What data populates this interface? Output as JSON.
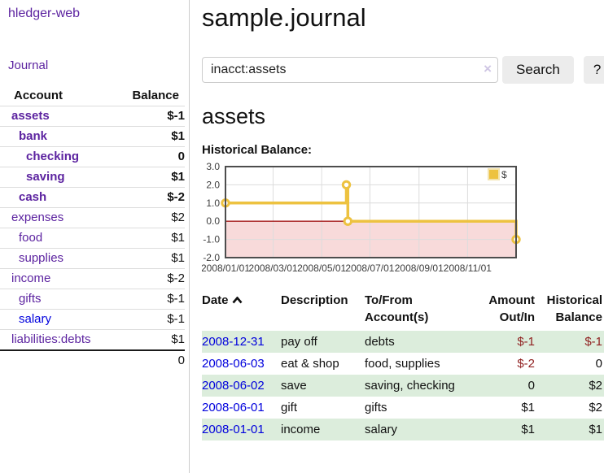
{
  "brand": "hledger-web",
  "nav": {
    "journal_label": "Journal"
  },
  "sidebar": {
    "header": {
      "account": "Account",
      "balance": "Balance"
    },
    "accounts": [
      {
        "name": "assets",
        "depth": 0,
        "balance": "$-1",
        "bold": true,
        "balance_style": "neg"
      },
      {
        "name": "bank",
        "depth": 1,
        "balance": "$1",
        "bold": true,
        "balance_style": "normal"
      },
      {
        "name": "checking",
        "depth": 2,
        "balance": "0",
        "bold": true,
        "balance_style": "normal"
      },
      {
        "name": "saving",
        "depth": 2,
        "balance": "$1",
        "bold": true,
        "balance_style": "normal"
      },
      {
        "name": "cash",
        "depth": 1,
        "balance": "$-2",
        "bold": true,
        "balance_style": "neg"
      },
      {
        "name": "expenses",
        "depth": 0,
        "balance": "$2",
        "bold": false,
        "balance_style": "normal"
      },
      {
        "name": "food",
        "depth": 1,
        "balance": "$1",
        "bold": false,
        "balance_style": "normal"
      },
      {
        "name": "supplies",
        "depth": 1,
        "balance": "$1",
        "bold": false,
        "balance_style": "normal"
      },
      {
        "name": "income",
        "depth": 0,
        "balance": "$-2",
        "bold": false,
        "balance_style": "faded"
      },
      {
        "name": "gifts",
        "depth": 1,
        "balance": "$-1",
        "bold": false,
        "balance_style": "faded"
      },
      {
        "name": "salary",
        "depth": 1,
        "balance": "$-1",
        "bold": false,
        "balance_style": "faded",
        "link_color": "blue"
      },
      {
        "name": "liabilities:debts",
        "depth": 0,
        "balance": "$1",
        "bold": false,
        "balance_style": "normal"
      }
    ],
    "total": "0"
  },
  "header": {
    "title": "sample.journal"
  },
  "search": {
    "value": "inacct:assets",
    "clear_icon": "×",
    "button_label": "Search",
    "help_label": "?"
  },
  "account_page": {
    "heading": "assets",
    "chart_label": "Historical Balance:"
  },
  "chart_data": {
    "type": "line",
    "step": true,
    "title": "Historical Balance",
    "legend_position": "top-right",
    "grid": true,
    "ylim": [
      -2,
      3
    ],
    "y_ticks": [
      3.0,
      2.0,
      1.0,
      0.0,
      -1.0,
      -2.0
    ],
    "x_ticks": [
      {
        "pos": 0.0,
        "label": "2008/01/01"
      },
      {
        "pos": 0.164,
        "label": "2008/03/01"
      },
      {
        "pos": 0.331,
        "label": "2008/05/01"
      },
      {
        "pos": 0.497,
        "label": "2008/07/01"
      },
      {
        "pos": 0.666,
        "label": "2008/09/01"
      },
      {
        "pos": 0.833,
        "label": "2008/11/01"
      }
    ],
    "series": [
      {
        "name": "$",
        "color": "#edc240",
        "points": [
          {
            "x": 0.0,
            "y": 1
          },
          {
            "x": 0.416,
            "y": 2
          },
          {
            "x": 0.421,
            "y": 0
          },
          {
            "x": 1.0,
            "y": -1
          }
        ],
        "source_data": [
          [
            "2008-01-01",
            1
          ],
          [
            "2008-06-01",
            2
          ],
          [
            "2008-06-02",
            2
          ],
          [
            "2008-06-03",
            0
          ],
          [
            "2008-12-31",
            -1
          ]
        ]
      }
    ],
    "negative_fill": "#f8dada",
    "zero_line_color": "#a31919"
  },
  "register": {
    "columns": [
      {
        "label": "Date",
        "sorted": "asc"
      },
      {
        "label": "Description"
      },
      {
        "label": "To/From Account(s)"
      },
      {
        "label": "Amount Out/In"
      },
      {
        "label": "Historical Balance"
      }
    ],
    "rows": [
      {
        "date": "2008-12-31",
        "description": "pay off",
        "accounts": "debts",
        "amount": "$-1",
        "amount_neg": true,
        "balance": "$-1",
        "balance_neg": true,
        "shaded": true
      },
      {
        "date": "2008-06-03",
        "description": "eat & shop",
        "accounts": "food, supplies",
        "amount": "$-2",
        "amount_neg": true,
        "balance": "0",
        "balance_neg": false,
        "shaded": false
      },
      {
        "date": "2008-06-02",
        "description": "save",
        "accounts": "saving, checking",
        "amount": "0",
        "amount_neg": false,
        "balance": "$2",
        "balance_neg": false,
        "shaded": true
      },
      {
        "date": "2008-06-01",
        "description": "gift",
        "accounts": "gifts",
        "amount": "$1",
        "amount_neg": false,
        "balance": "$2",
        "balance_neg": false,
        "shaded": false
      },
      {
        "date": "2008-01-01",
        "description": "income",
        "accounts": "salary",
        "amount": "$1",
        "amount_neg": false,
        "balance": "$1",
        "balance_neg": false,
        "shaded": true
      }
    ]
  }
}
